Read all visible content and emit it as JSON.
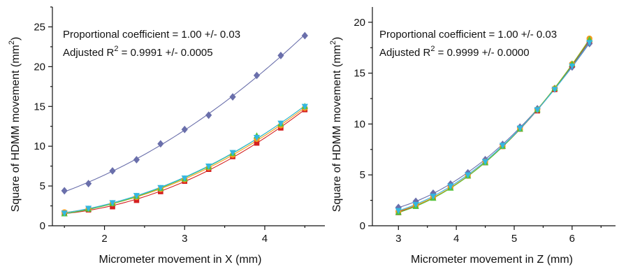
{
  "colors": {
    "purple": "#6a6fab",
    "red": "#d42020",
    "orange": "#f39c1d",
    "green": "#55c23a",
    "cyan": "#35b7e0",
    "axis": "#111111"
  },
  "chart_data": [
    {
      "type": "scatter",
      "title": "",
      "xlabel": "Micrometer movement in X (mm)",
      "ylabel_main": "Square of HDMM movement (mm",
      "ylabel_sup": "2",
      "ylabel_end": ")",
      "xlim": [
        1.35,
        4.75
      ],
      "ylim": [
        0,
        27.5
      ],
      "xticks": [
        2,
        3,
        4
      ],
      "yticks": [
        0,
        5,
        10,
        15,
        20,
        25
      ],
      "annotation_line1": "Proportional coefficient = 1.00 +/- 0.03",
      "annotation_line2_prefix": "Adjusted R",
      "annotation_line2_sup": "2",
      "annotation_line2_suffix": " = 0.9991 +/- 0.0005",
      "x": [
        1.5,
        1.8,
        2.1,
        2.4,
        2.7,
        3.0,
        3.3,
        3.6,
        3.9,
        4.2,
        4.5
      ],
      "series": [
        {
          "marker": "diamond",
          "color": "#6a6fab",
          "values": [
            4.4,
            5.3,
            6.9,
            8.3,
            10.3,
            12.1,
            13.9,
            16.2,
            18.9,
            21.4,
            23.9
          ]
        },
        {
          "marker": "square",
          "color": "#d42020",
          "values": [
            1.6,
            2.0,
            2.4,
            3.2,
            4.3,
            5.6,
            7.1,
            8.7,
            10.4,
            12.3,
            14.6
          ]
        },
        {
          "marker": "circle",
          "color": "#f39c1d",
          "values": [
            1.7,
            2.1,
            2.8,
            3.6,
            4.6,
            5.8,
            7.3,
            8.9,
            10.9,
            12.6,
            14.8
          ]
        },
        {
          "marker": "triangle-up",
          "color": "#55c23a",
          "values": [
            1.5,
            2.1,
            2.8,
            3.7,
            4.7,
            5.9,
            7.4,
            9.1,
            11.3,
            12.8,
            15.0
          ]
        },
        {
          "marker": "triangle-down",
          "color": "#35b7e0",
          "values": [
            1.6,
            2.2,
            2.9,
            3.8,
            4.8,
            6.0,
            7.5,
            9.2,
            11.1,
            12.9,
            15.0
          ]
        }
      ]
    },
    {
      "type": "scatter",
      "title": "",
      "xlabel": "Micrometer movement in Z (mm)",
      "ylabel_main": "Square of HDMM movement (mm",
      "ylabel_sup": "2",
      "ylabel_end": ")",
      "xlim": [
        2.55,
        6.75
      ],
      "ylim": [
        0,
        21.5
      ],
      "xticks": [
        3,
        4,
        5,
        6
      ],
      "yticks": [
        0,
        5,
        10,
        15,
        20
      ],
      "annotation_line1": "Proportional coefficient = 1.00 +/- 0.03",
      "annotation_line2_prefix": "Adjusted R",
      "annotation_line2_sup": "2",
      "annotation_line2_suffix": " = 0.9999 +/- 0.0000",
      "x": [
        3.0,
        3.3,
        3.6,
        3.9,
        4.2,
        4.5,
        4.8,
        5.1,
        5.4,
        5.7,
        6.0,
        6.3
      ],
      "series": [
        {
          "marker": "diamond",
          "color": "#6a6fab",
          "values": [
            1.8,
            2.4,
            3.2,
            4.1,
            5.2,
            6.5,
            8.0,
            9.7,
            11.5,
            13.5,
            15.6,
            17.9
          ]
        },
        {
          "marker": "square",
          "color": "#d42020",
          "values": [
            1.3,
            2.0,
            2.8,
            3.8,
            4.9,
            6.2,
            7.8,
            9.5,
            11.3,
            13.4,
            15.8,
            18.2
          ]
        },
        {
          "marker": "circle",
          "color": "#f39c1d",
          "values": [
            1.4,
            2.0,
            2.8,
            3.8,
            4.9,
            6.3,
            7.8,
            9.5,
            11.4,
            13.5,
            15.9,
            18.4
          ]
        },
        {
          "marker": "triangle-up",
          "color": "#55c23a",
          "values": [
            1.3,
            1.9,
            2.7,
            3.7,
            4.9,
            6.2,
            7.8,
            9.5,
            11.4,
            13.5,
            15.9,
            18.3
          ]
        },
        {
          "marker": "triangle-down",
          "color": "#35b7e0",
          "values": [
            1.5,
            2.1,
            2.9,
            3.9,
            5.0,
            6.3,
            7.9,
            9.6,
            11.4,
            13.4,
            15.7,
            18.0
          ]
        }
      ]
    }
  ]
}
